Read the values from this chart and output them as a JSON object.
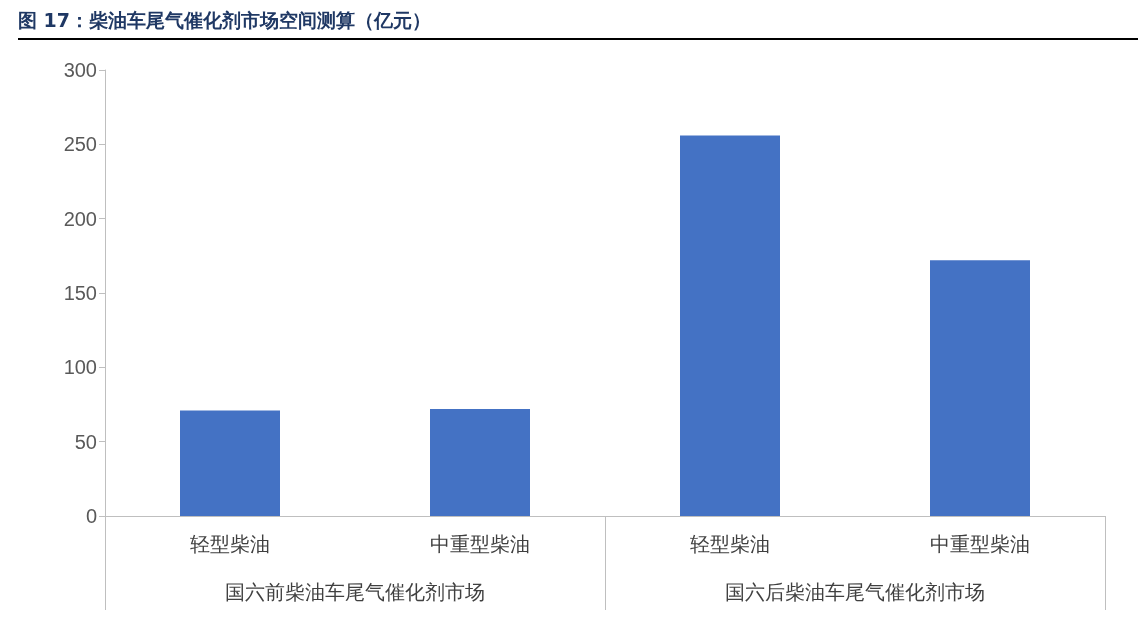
{
  "chart_data": {
    "type": "bar",
    "title": "图 17：柴油车尾气催化剂市场空间测算（亿元）",
    "categories": [
      "轻型柴油",
      "中重型柴油",
      "轻型柴油",
      "中重型柴油"
    ],
    "values": [
      71,
      72,
      256,
      172
    ],
    "color": "#4472c4",
    "ylim": [
      0,
      300
    ],
    "yticks": [
      0,
      50,
      100,
      150,
      200,
      250,
      300
    ],
    "grid": false,
    "annotations": [
      "国六前柴油车尾气催化剂市场",
      "国六后柴油车尾气催化剂市场"
    ]
  }
}
